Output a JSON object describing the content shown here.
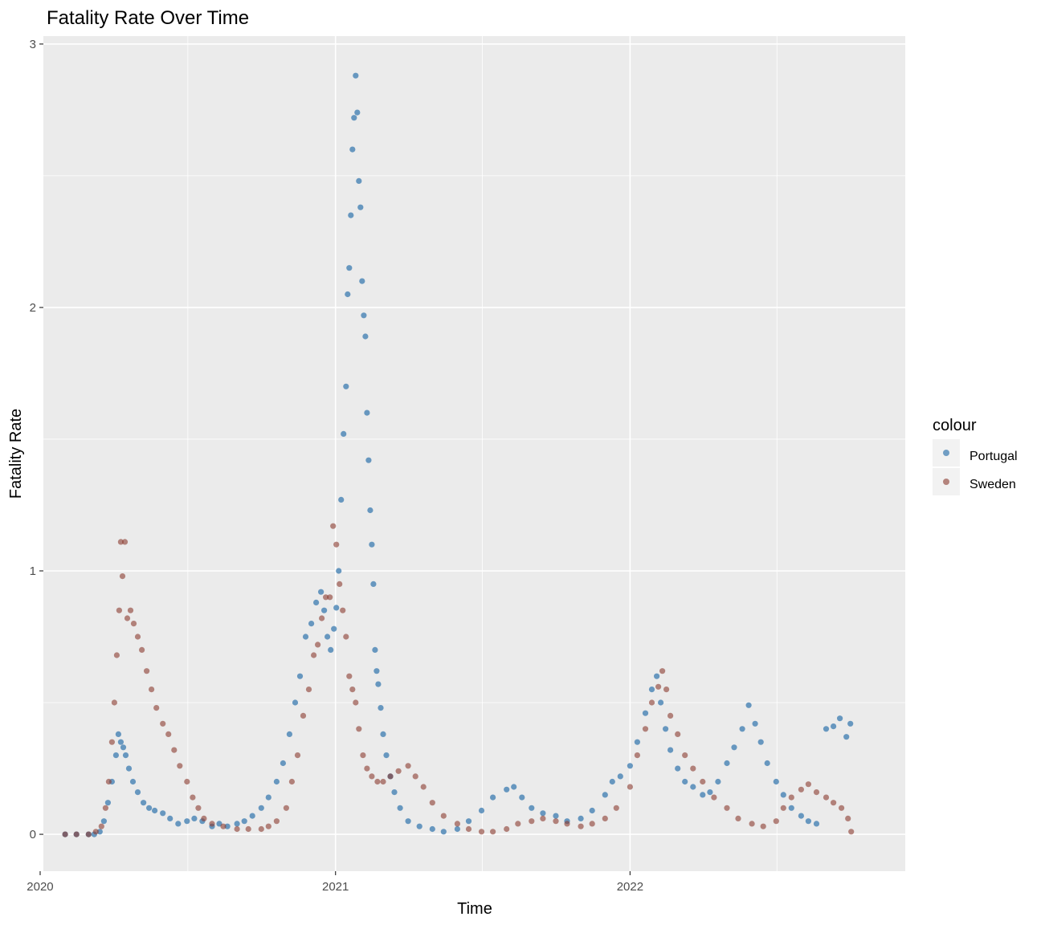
{
  "chart_data": {
    "type": "scatter",
    "title": "Fatality Rate Over Time",
    "xlabel": "Time",
    "ylabel": "Fatality Rate",
    "x_ticks": [
      "2020",
      "2021",
      "2022"
    ],
    "y_ticks": [
      "0",
      "1",
      "2",
      "3"
    ],
    "x_range": [
      "2020-01-05",
      "2022-12-08"
    ],
    "ylim": [
      -0.14,
      3.03
    ],
    "grid": true,
    "legend": {
      "title": "colour",
      "position": "right",
      "entries": [
        "Portugal",
        "Sweden"
      ]
    },
    "series": [
      {
        "name": "Portugal",
        "color": "#4682B4",
        "points": [
          [
            "2020-02-01",
            0
          ],
          [
            "2020-02-15",
            0
          ],
          [
            "2020-03-01",
            0
          ],
          [
            "2020-03-08",
            0
          ],
          [
            "2020-03-15",
            0.01
          ],
          [
            "2020-03-20",
            0.05
          ],
          [
            "2020-03-25",
            0.12
          ],
          [
            "2020-03-30",
            0.2
          ],
          [
            "2020-04-04",
            0.3
          ],
          [
            "2020-04-07",
            0.38
          ],
          [
            "2020-04-10",
            0.35
          ],
          [
            "2020-04-13",
            0.33
          ],
          [
            "2020-04-16",
            0.3
          ],
          [
            "2020-04-20",
            0.25
          ],
          [
            "2020-04-25",
            0.2
          ],
          [
            "2020-05-01",
            0.16
          ],
          [
            "2020-05-08",
            0.12
          ],
          [
            "2020-05-15",
            0.1
          ],
          [
            "2020-05-22",
            0.09
          ],
          [
            "2020-06-01",
            0.08
          ],
          [
            "2020-06-10",
            0.06
          ],
          [
            "2020-06-20",
            0.04
          ],
          [
            "2020-07-01",
            0.05
          ],
          [
            "2020-07-10",
            0.06
          ],
          [
            "2020-07-20",
            0.05
          ],
          [
            "2020-08-01",
            0.03
          ],
          [
            "2020-08-10",
            0.04
          ],
          [
            "2020-08-20",
            0.03
          ],
          [
            "2020-09-01",
            0.04
          ],
          [
            "2020-09-10",
            0.05
          ],
          [
            "2020-09-20",
            0.07
          ],
          [
            "2020-10-01",
            0.1
          ],
          [
            "2020-10-10",
            0.14
          ],
          [
            "2020-10-20",
            0.2
          ],
          [
            "2020-10-28",
            0.27
          ],
          [
            "2020-11-05",
            0.38
          ],
          [
            "2020-11-12",
            0.5
          ],
          [
            "2020-11-18",
            0.6
          ],
          [
            "2020-11-25",
            0.75
          ],
          [
            "2020-12-02",
            0.8
          ],
          [
            "2020-12-08",
            0.88
          ],
          [
            "2020-12-14",
            0.92
          ],
          [
            "2020-12-18",
            0.85
          ],
          [
            "2020-12-22",
            0.75
          ],
          [
            "2020-12-26",
            0.7
          ],
          [
            "2020-12-30",
            0.78
          ],
          [
            "2021-01-02",
            0.86
          ],
          [
            "2021-01-05",
            1.0
          ],
          [
            "2021-01-08",
            1.27
          ],
          [
            "2021-01-11",
            1.52
          ],
          [
            "2021-01-14",
            1.7
          ],
          [
            "2021-01-16",
            2.05
          ],
          [
            "2021-01-18",
            2.15
          ],
          [
            "2021-01-20",
            2.35
          ],
          [
            "2021-01-22",
            2.6
          ],
          [
            "2021-01-24",
            2.72
          ],
          [
            "2021-01-26",
            2.88
          ],
          [
            "2021-01-28",
            2.74
          ],
          [
            "2021-01-30",
            2.48
          ],
          [
            "2021-02-01",
            2.38
          ],
          [
            "2021-02-03",
            2.1
          ],
          [
            "2021-02-05",
            1.97
          ],
          [
            "2021-02-07",
            1.89
          ],
          [
            "2021-02-09",
            1.6
          ],
          [
            "2021-02-11",
            1.42
          ],
          [
            "2021-02-13",
            1.23
          ],
          [
            "2021-02-15",
            1.1
          ],
          [
            "2021-02-17",
            0.95
          ],
          [
            "2021-02-19",
            0.7
          ],
          [
            "2021-02-21",
            0.62
          ],
          [
            "2021-02-23",
            0.57
          ],
          [
            "2021-02-26",
            0.48
          ],
          [
            "2021-03-01",
            0.38
          ],
          [
            "2021-03-05",
            0.3
          ],
          [
            "2021-03-10",
            0.22
          ],
          [
            "2021-03-15",
            0.16
          ],
          [
            "2021-03-22",
            0.1
          ],
          [
            "2021-04-01",
            0.05
          ],
          [
            "2021-04-15",
            0.03
          ],
          [
            "2021-05-01",
            0.02
          ],
          [
            "2021-05-15",
            0.01
          ],
          [
            "2021-06-01",
            0.02
          ],
          [
            "2021-06-15",
            0.05
          ],
          [
            "2021-07-01",
            0.09
          ],
          [
            "2021-07-15",
            0.14
          ],
          [
            "2021-08-01",
            0.17
          ],
          [
            "2021-08-10",
            0.18
          ],
          [
            "2021-08-20",
            0.14
          ],
          [
            "2021-09-01",
            0.1
          ],
          [
            "2021-09-15",
            0.08
          ],
          [
            "2021-10-01",
            0.07
          ],
          [
            "2021-10-15",
            0.05
          ],
          [
            "2021-11-01",
            0.06
          ],
          [
            "2021-11-15",
            0.09
          ],
          [
            "2021-12-01",
            0.15
          ],
          [
            "2021-12-10",
            0.2
          ],
          [
            "2021-12-20",
            0.22
          ],
          [
            "2022-01-01",
            0.26
          ],
          [
            "2022-01-10",
            0.35
          ],
          [
            "2022-01-20",
            0.46
          ],
          [
            "2022-01-28",
            0.55
          ],
          [
            "2022-02-03",
            0.6
          ],
          [
            "2022-02-08",
            0.5
          ],
          [
            "2022-02-14",
            0.4
          ],
          [
            "2022-02-20",
            0.32
          ],
          [
            "2022-03-01",
            0.25
          ],
          [
            "2022-03-10",
            0.2
          ],
          [
            "2022-03-20",
            0.18
          ],
          [
            "2022-04-01",
            0.15
          ],
          [
            "2022-04-10",
            0.16
          ],
          [
            "2022-04-20",
            0.2
          ],
          [
            "2022-05-01",
            0.27
          ],
          [
            "2022-05-10",
            0.33
          ],
          [
            "2022-05-20",
            0.4
          ],
          [
            "2022-05-28",
            0.49
          ],
          [
            "2022-06-05",
            0.42
          ],
          [
            "2022-06-12",
            0.35
          ],
          [
            "2022-06-20",
            0.27
          ],
          [
            "2022-07-01",
            0.2
          ],
          [
            "2022-07-10",
            0.15
          ],
          [
            "2022-07-20",
            0.1
          ],
          [
            "2022-08-01",
            0.07
          ],
          [
            "2022-08-10",
            0.05
          ],
          [
            "2022-08-20",
            0.04
          ],
          [
            "2022-09-01",
            0.4
          ],
          [
            "2022-09-10",
            0.41
          ],
          [
            "2022-09-18",
            0.44
          ],
          [
            "2022-09-26",
            0.37
          ],
          [
            "2022-10-01",
            0.42
          ]
        ]
      },
      {
        "name": "Sweden",
        "color": "#8B3A2F",
        "points": [
          [
            "2020-02-01",
            0
          ],
          [
            "2020-02-15",
            0
          ],
          [
            "2020-03-01",
            0
          ],
          [
            "2020-03-10",
            0.01
          ],
          [
            "2020-03-17",
            0.03
          ],
          [
            "2020-03-22",
            0.1
          ],
          [
            "2020-03-26",
            0.2
          ],
          [
            "2020-03-30",
            0.35
          ],
          [
            "2020-04-02",
            0.5
          ],
          [
            "2020-04-05",
            0.68
          ],
          [
            "2020-04-08",
            0.85
          ],
          [
            "2020-04-10",
            1.11
          ],
          [
            "2020-04-12",
            0.98
          ],
          [
            "2020-04-15",
            1.11
          ],
          [
            "2020-04-18",
            0.82
          ],
          [
            "2020-04-22",
            0.85
          ],
          [
            "2020-04-26",
            0.8
          ],
          [
            "2020-05-01",
            0.75
          ],
          [
            "2020-05-06",
            0.7
          ],
          [
            "2020-05-12",
            0.62
          ],
          [
            "2020-05-18",
            0.55
          ],
          [
            "2020-05-24",
            0.48
          ],
          [
            "2020-06-01",
            0.42
          ],
          [
            "2020-06-08",
            0.38
          ],
          [
            "2020-06-15",
            0.32
          ],
          [
            "2020-06-22",
            0.26
          ],
          [
            "2020-07-01",
            0.2
          ],
          [
            "2020-07-08",
            0.14
          ],
          [
            "2020-07-15",
            0.1
          ],
          [
            "2020-07-22",
            0.06
          ],
          [
            "2020-08-01",
            0.04
          ],
          [
            "2020-08-15",
            0.03
          ],
          [
            "2020-09-01",
            0.02
          ],
          [
            "2020-09-15",
            0.02
          ],
          [
            "2020-10-01",
            0.02
          ],
          [
            "2020-10-10",
            0.03
          ],
          [
            "2020-10-20",
            0.05
          ],
          [
            "2020-11-01",
            0.1
          ],
          [
            "2020-11-08",
            0.2
          ],
          [
            "2020-11-15",
            0.3
          ],
          [
            "2020-11-22",
            0.45
          ],
          [
            "2020-11-29",
            0.55
          ],
          [
            "2020-12-05",
            0.68
          ],
          [
            "2020-12-10",
            0.72
          ],
          [
            "2020-12-15",
            0.82
          ],
          [
            "2020-12-20",
            0.9
          ],
          [
            "2020-12-25",
            0.9
          ],
          [
            "2020-12-29",
            1.17
          ],
          [
            "2021-01-02",
            1.1
          ],
          [
            "2021-01-06",
            0.95
          ],
          [
            "2021-01-10",
            0.85
          ],
          [
            "2021-01-14",
            0.75
          ],
          [
            "2021-01-18",
            0.6
          ],
          [
            "2021-01-22",
            0.55
          ],
          [
            "2021-01-26",
            0.5
          ],
          [
            "2021-01-30",
            0.4
          ],
          [
            "2021-02-04",
            0.3
          ],
          [
            "2021-02-09",
            0.25
          ],
          [
            "2021-02-15",
            0.22
          ],
          [
            "2021-02-22",
            0.2
          ],
          [
            "2021-03-01",
            0.2
          ],
          [
            "2021-03-10",
            0.22
          ],
          [
            "2021-03-20",
            0.24
          ],
          [
            "2021-04-01",
            0.26
          ],
          [
            "2021-04-10",
            0.22
          ],
          [
            "2021-04-20",
            0.18
          ],
          [
            "2021-05-01",
            0.12
          ],
          [
            "2021-05-15",
            0.07
          ],
          [
            "2021-06-01",
            0.04
          ],
          [
            "2021-06-15",
            0.02
          ],
          [
            "2021-07-01",
            0.01
          ],
          [
            "2021-07-15",
            0.01
          ],
          [
            "2021-08-01",
            0.02
          ],
          [
            "2021-08-15",
            0.04
          ],
          [
            "2021-09-01",
            0.05
          ],
          [
            "2021-09-15",
            0.06
          ],
          [
            "2021-10-01",
            0.05
          ],
          [
            "2021-10-15",
            0.04
          ],
          [
            "2021-11-01",
            0.03
          ],
          [
            "2021-11-15",
            0.04
          ],
          [
            "2021-12-01",
            0.06
          ],
          [
            "2021-12-15",
            0.1
          ],
          [
            "2022-01-01",
            0.18
          ],
          [
            "2022-01-10",
            0.3
          ],
          [
            "2022-01-20",
            0.4
          ],
          [
            "2022-01-28",
            0.5
          ],
          [
            "2022-02-05",
            0.56
          ],
          [
            "2022-02-10",
            0.62
          ],
          [
            "2022-02-15",
            0.55
          ],
          [
            "2022-02-20",
            0.45
          ],
          [
            "2022-03-01",
            0.38
          ],
          [
            "2022-03-10",
            0.3
          ],
          [
            "2022-03-20",
            0.25
          ],
          [
            "2022-04-01",
            0.2
          ],
          [
            "2022-04-15",
            0.14
          ],
          [
            "2022-05-01",
            0.1
          ],
          [
            "2022-05-15",
            0.06
          ],
          [
            "2022-06-01",
            0.04
          ],
          [
            "2022-06-15",
            0.03
          ],
          [
            "2022-07-01",
            0.05
          ],
          [
            "2022-07-10",
            0.1
          ],
          [
            "2022-07-20",
            0.14
          ],
          [
            "2022-08-01",
            0.17
          ],
          [
            "2022-08-10",
            0.19
          ],
          [
            "2022-08-20",
            0.16
          ],
          [
            "2022-09-01",
            0.14
          ],
          [
            "2022-09-10",
            0.12
          ],
          [
            "2022-09-20",
            0.1
          ],
          [
            "2022-09-28",
            0.06
          ],
          [
            "2022-10-02",
            0.01
          ]
        ]
      }
    ]
  }
}
